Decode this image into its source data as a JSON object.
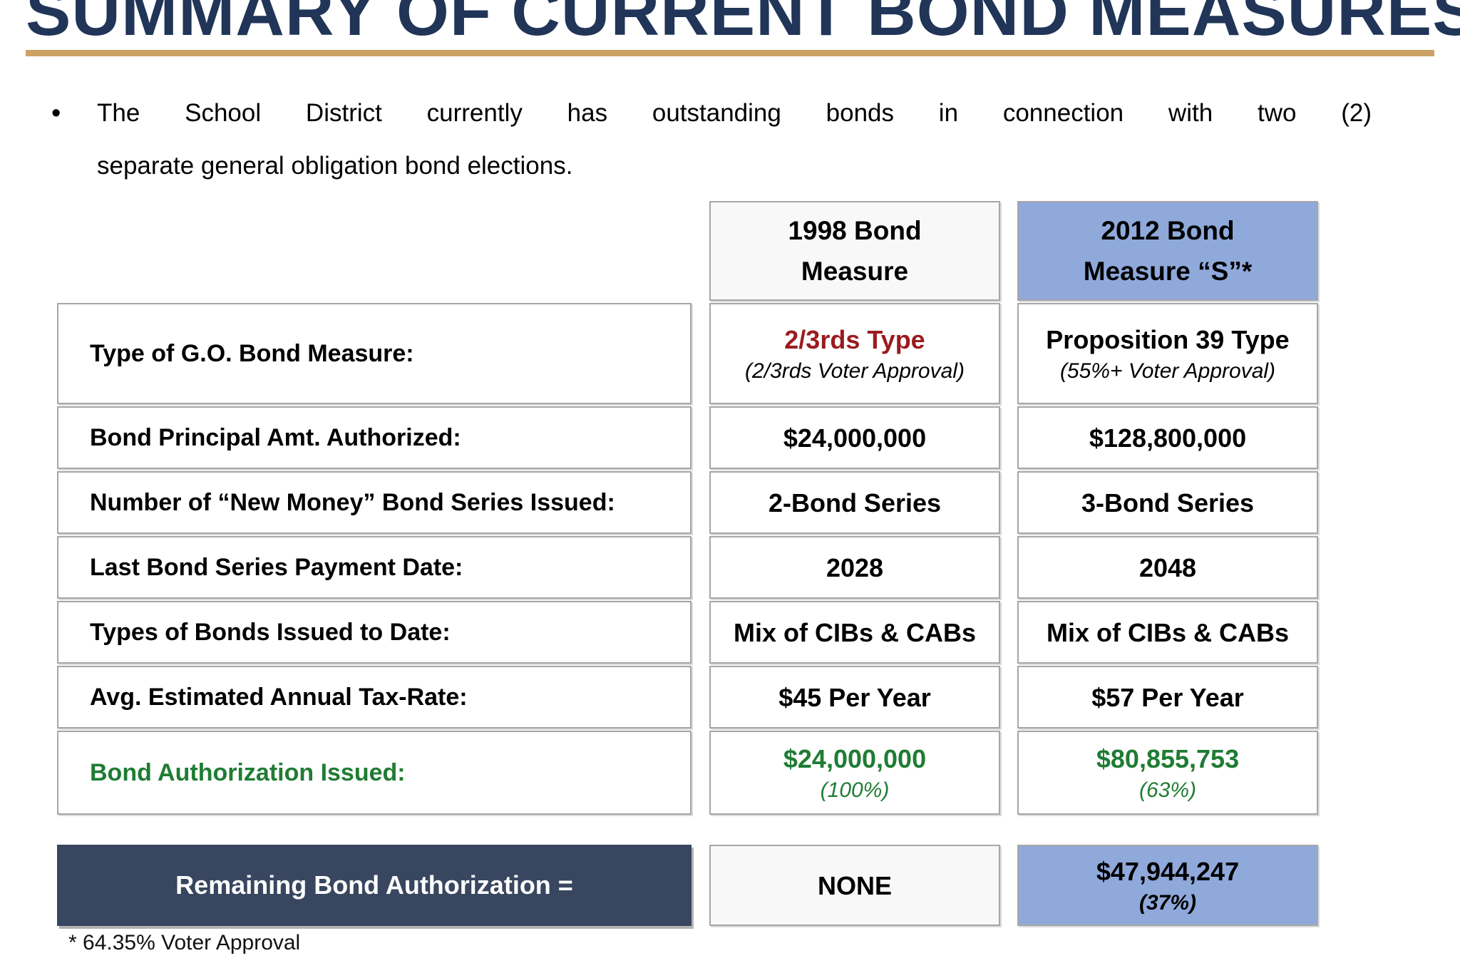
{
  "slide": {
    "title": "SUMMARY OF CURRENT BOND MEASURES",
    "bullet_glyph": "•",
    "bullet_line1": "The School District currently has outstanding bonds in connection with two (2)",
    "bullet_line2": "separate general obligation bond elections.",
    "footnote": "* 64.35% Voter Approval"
  },
  "colors": {
    "title_navy": "#203557",
    "rule_tan": "#CBA164",
    "header_blue": "#8FA9DB",
    "footer_navy": "#38465F",
    "accent_green": "#1F7C33",
    "accent_dark_red": "#9A1B1E",
    "cell_border_gray": "#A6A6A6"
  },
  "table": {
    "columns": [
      {
        "line1": "1998 Bond",
        "line2": "Measure"
      },
      {
        "line1": "2012 Bond",
        "line2": "Measure “S”*"
      }
    ],
    "rows": [
      {
        "label": "Type of G.O. Bond Measure:",
        "c1": {
          "main": "2/3rds Type",
          "sub": "(2/3rds  Voter Approval)"
        },
        "c2": {
          "main": "Proposition 39 Type",
          "sub": "(55%+ Voter Approval)"
        }
      },
      {
        "label": "Bond Principal Amt. Authorized:",
        "c1": {
          "main": "$24,000,000"
        },
        "c2": {
          "main": "$128,800,000"
        }
      },
      {
        "label": "Number of “New Money” Bond Series Issued:",
        "c1": {
          "main": "2-Bond Series"
        },
        "c2": {
          "main": "3-Bond Series"
        }
      },
      {
        "label": "Last Bond Series Payment Date:",
        "c1": {
          "main": "2028"
        },
        "c2": {
          "main": "2048"
        }
      },
      {
        "label": "Types of Bonds Issued to Date:",
        "c1": {
          "main": "Mix of CIBs & CABs"
        },
        "c2": {
          "main": "Mix of CIBs & CABs"
        }
      },
      {
        "label": "Avg. Estimated Annual Tax-Rate:",
        "c1": {
          "main": "$45 Per Year"
        },
        "c2": {
          "main": "$57 Per Year"
        }
      },
      {
        "label": "Bond Authorization Issued:",
        "c1": {
          "main": "$24,000,000",
          "sub": "(100%)"
        },
        "c2": {
          "main": "$80,855,753",
          "sub": "(63%)"
        }
      }
    ],
    "footer": {
      "label": "Remaining Bond Authorization =",
      "c1": {
        "main": "NONE"
      },
      "c2": {
        "main": "$47,944,247",
        "sub": "(37%)"
      }
    }
  }
}
